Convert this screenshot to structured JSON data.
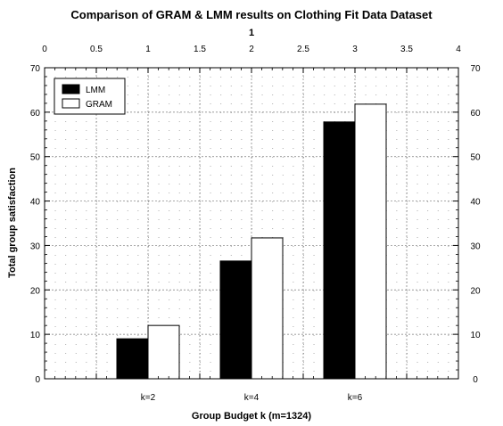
{
  "chart_data": {
    "type": "bar",
    "title": "Comparison of GRAM & LMM results on Clothing Fit Data Dataset",
    "xlabel": "Group Budget k (m=1324)",
    "ylabel": "Total group satisfaction",
    "top_axis_label": "1",
    "categories": [
      "k=2",
      "k=4",
      "k=6"
    ],
    "series": [
      {
        "name": "LMM",
        "values": [
          9,
          26.5,
          57.8
        ],
        "color": "#000000"
      },
      {
        "name": "GRAM",
        "values": [
          12,
          31.7,
          61.8
        ],
        "color": "#ffffff"
      }
    ],
    "ylim": [
      0,
      70
    ],
    "yticks": [
      0,
      10,
      20,
      30,
      40,
      50,
      60,
      70
    ],
    "top_xlim": [
      0,
      4
    ],
    "top_xticks": [
      "0",
      "0.5",
      "1",
      "1.5",
      "2",
      "2.5",
      "3",
      "3.5",
      "4"
    ],
    "grid": true,
    "legend_position": "top-left"
  }
}
